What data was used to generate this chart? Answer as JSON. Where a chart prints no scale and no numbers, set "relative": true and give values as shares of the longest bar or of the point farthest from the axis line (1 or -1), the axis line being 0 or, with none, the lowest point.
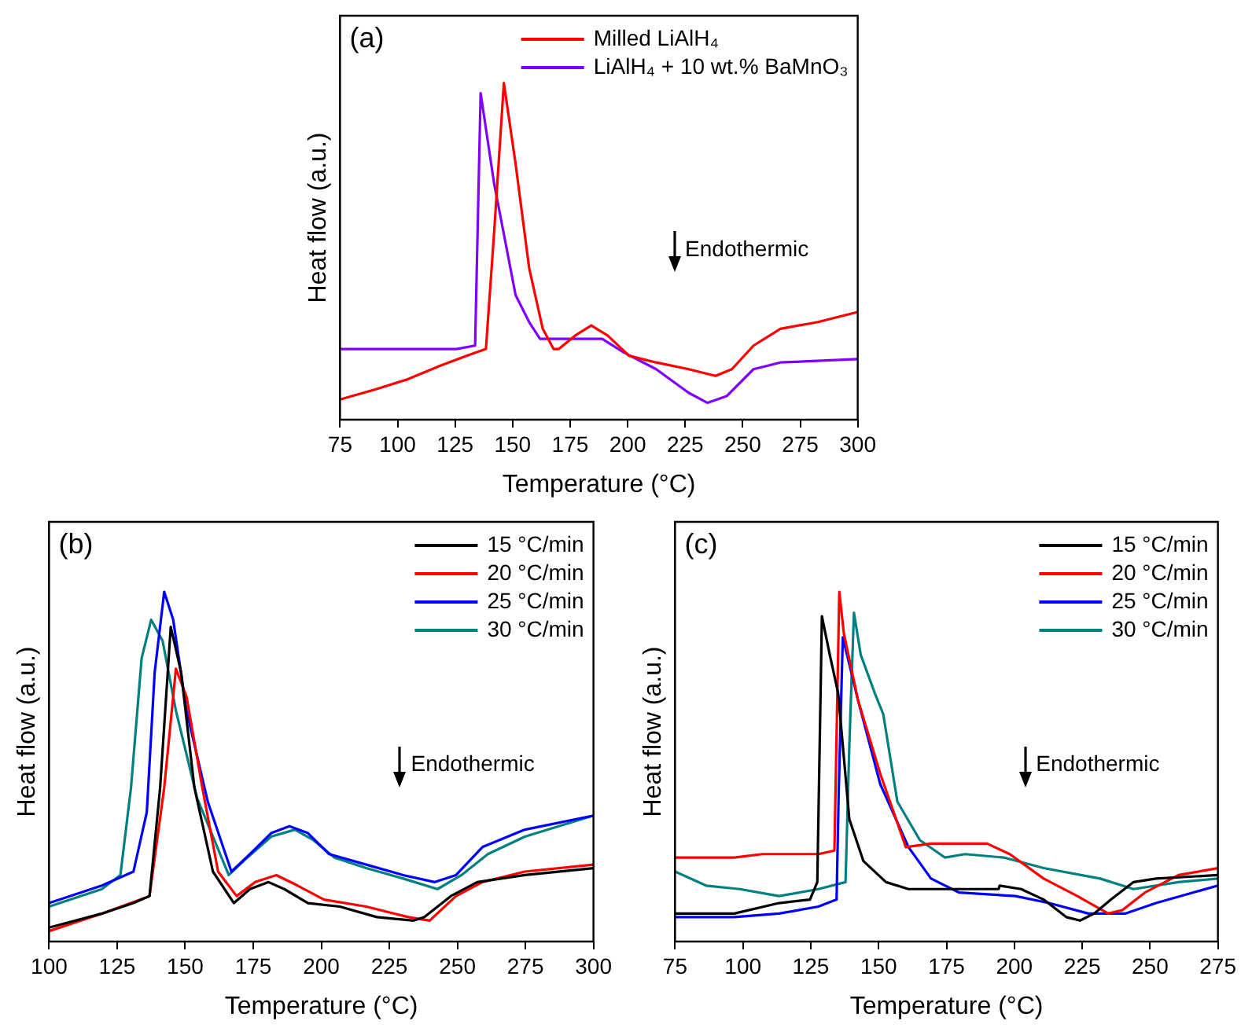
{
  "chart_data": [
    {
      "type": "line",
      "xlabel": "Temperature (°C)",
      "ylabel": "Heat flow (a.u.)",
      "relative": true,
      "xlim": [
        75,
        300
      ],
      "xticks": [
        75,
        100,
        125,
        150,
        175,
        200,
        225,
        250,
        275,
        300
      ],
      "grid": false,
      "legend": "top right",
      "marker": "none",
      "line_style": "solid",
      "annotations": [
        "(a)",
        "Endothermic"
      ],
      "series": [
        {
          "name": "Milled LiAlH₄",
          "color": "#ff0000",
          "x": [
            75,
            90.3,
            104.4,
            118.4,
            130.2,
            138.4,
            142,
            146.2,
            151.3,
            157.2,
            163.1,
            167.8,
            170.1,
            177.2,
            184.2,
            191.3,
            200.6,
            212.4,
            226.5,
            238.2,
            245.3,
            254.7,
            266.4,
            282.7,
            300
          ],
          "values": [
            0.06,
            0.09,
            0.12,
            0.16,
            0.19,
            0.21,
            0.56,
            1,
            0.76,
            0.45,
            0.27,
            0.21,
            0.21,
            0.25,
            0.28,
            0.25,
            0.19,
            0.17,
            0.15,
            0.13,
            0.15,
            0.22,
            0.27,
            0.29,
            0.32
          ]
        },
        {
          "name": "LiAlH₄ + 10 wt.% BaMnO₃",
          "color": "#8000ff",
          "x": [
            75,
            95,
            109,
            125.5,
            133.7,
            136.1,
            142,
            151.3,
            157.2,
            161.9,
            172.5,
            188.9,
            198.3,
            212.4,
            226.5,
            234.7,
            243,
            254.7,
            266.4,
            300
          ],
          "values": [
            0.21,
            0.21,
            0.21,
            0.21,
            0.22,
            0.97,
            0.7,
            0.37,
            0.29,
            0.24,
            0.24,
            0.24,
            0.2,
            0.15,
            0.08,
            0.05,
            0.07,
            0.15,
            0.17,
            0.18
          ]
        }
      ]
    },
    {
      "type": "line",
      "xlabel": "Temperature (°C)",
      "ylabel": "Heat flow (a.u.)",
      "relative": true,
      "xlim": [
        100,
        300
      ],
      "xticks": [
        100,
        125,
        150,
        175,
        200,
        225,
        250,
        275,
        300
      ],
      "grid": false,
      "legend": "top right",
      "marker": "none",
      "line_style": "solid",
      "annotations": [
        "(b)",
        "Endothermic"
      ],
      "series": [
        {
          "name": "15 °C/min",
          "color": "#000000",
          "x": [
            100,
            119.4,
            131,
            136.9,
            140.8,
            144.7,
            148.5,
            153.4,
            160.2,
            167.9,
            173.8,
            180.6,
            186.4,
            195.1,
            206.8,
            220.4,
            234,
            237.9,
            247.6,
            257.3,
            274.8,
            300
          ],
          "values": [
            0.04,
            0.08,
            0.11,
            0.13,
            0.44,
            0.9,
            0.77,
            0.44,
            0.2,
            0.11,
            0.15,
            0.17,
            0.15,
            0.11,
            0.1,
            0.07,
            0.06,
            0.07,
            0.13,
            0.17,
            0.19,
            0.21
          ]
        },
        {
          "name": "20 °C/min",
          "color": "#ff0000",
          "x": [
            100,
            119.4,
            136.9,
            142.3,
            146.6,
            150.5,
            156.3,
            162.1,
            168.9,
            175.7,
            183.5,
            191.3,
            201,
            216.5,
            232,
            239.8,
            249.5,
            259.2,
            274.8,
            300
          ],
          "values": [
            0.03,
            0.08,
            0.13,
            0.44,
            0.78,
            0.7,
            0.44,
            0.2,
            0.13,
            0.17,
            0.19,
            0.16,
            0.12,
            0.1,
            0.07,
            0.06,
            0.13,
            0.17,
            0.2,
            0.22
          ]
        },
        {
          "name": "25 °C/min",
          "color": "#0000ff",
          "x": [
            100,
            119.4,
            131,
            135.9,
            138.8,
            142.3,
            145.6,
            150.5,
            158.3,
            167,
            173.8,
            181.6,
            188.3,
            195.1,
            202.9,
            216.5,
            230.1,
            241.7,
            249.5,
            259.2,
            274.8,
            300
          ],
          "values": [
            0.11,
            0.16,
            0.2,
            0.37,
            0.77,
            1,
            0.92,
            0.66,
            0.4,
            0.2,
            0.25,
            0.31,
            0.33,
            0.31,
            0.25,
            0.22,
            0.19,
            0.17,
            0.19,
            0.27,
            0.32,
            0.36
          ]
        },
        {
          "name": "30 °C/min",
          "color": "#008080",
          "x": [
            100,
            119.4,
            126.2,
            130.1,
            134,
            137.5,
            141.7,
            146.6,
            154.4,
            166,
            172.8,
            181.6,
            190.3,
            197.1,
            204.9,
            216.5,
            230.1,
            242.7,
            251.5,
            261.2,
            274.8,
            300
          ],
          "values": [
            0.1,
            0.15,
            0.19,
            0.44,
            0.81,
            0.92,
            0.86,
            0.66,
            0.41,
            0.19,
            0.24,
            0.3,
            0.32,
            0.29,
            0.24,
            0.21,
            0.18,
            0.15,
            0.19,
            0.25,
            0.3,
            0.36
          ]
        }
      ]
    },
    {
      "type": "line",
      "xlabel": "Temperature (°C)",
      "ylabel": "Heat flow (a.u.)",
      "relative": true,
      "xlim": [
        75,
        275
      ],
      "xticks": [
        75,
        100,
        125,
        150,
        175,
        200,
        225,
        250,
        275
      ],
      "grid": false,
      "legend": "top right",
      "marker": "none",
      "line_style": "solid",
      "annotations": [
        "(c)",
        "Endothermic"
      ],
      "series": [
        {
          "name": "15 °C/min",
          "color": "#000000",
          "x": [
            75,
            96.8,
            113.3,
            124.7,
            127.4,
            129.1,
            132,
            135.1,
            139.2,
            144.4,
            152.7,
            161,
            179.7,
            194.2,
            194.6,
            202.5,
            210.8,
            219.1,
            224.2,
            229.4,
            235.6,
            243.9,
            252.2,
            275
          ],
          "values": [
            0.08,
            0.08,
            0.11,
            0.12,
            0.17,
            0.93,
            0.82,
            0.71,
            0.35,
            0.23,
            0.17,
            0.15,
            0.15,
            0.15,
            0.16,
            0.15,
            0.12,
            0.07,
            0.06,
            0.08,
            0.12,
            0.17,
            0.18,
            0.19
          ]
        },
        {
          "name": "20 °C/min",
          "color": "#ff0000",
          "x": [
            75,
            96.8,
            107.1,
            127.8,
            133.7,
            135.5,
            137.2,
            142.4,
            150.6,
            160,
            169.3,
            190,
            198.3,
            210.8,
            223.2,
            234.6,
            239.8,
            248.1,
            260.5,
            275
          ],
          "values": [
            0.24,
            0.24,
            0.25,
            0.25,
            0.26,
            1,
            0.88,
            0.69,
            0.48,
            0.27,
            0.28,
            0.28,
            0.25,
            0.18,
            0.13,
            0.08,
            0.09,
            0.14,
            0.19,
            0.21
          ]
        },
        {
          "name": "25 °C/min",
          "color": "#0000ff",
          "x": [
            75,
            96.8,
            113.3,
            127.8,
            134.5,
            135.3,
            136.8,
            142.4,
            150.6,
            161,
            169.3,
            179.7,
            200.4,
            212.8,
            227.3,
            240.8,
            252.2,
            275
          ],
          "values": [
            0.07,
            0.07,
            0.08,
            0.1,
            0.12,
            0.43,
            0.87,
            0.69,
            0.45,
            0.27,
            0.18,
            0.14,
            0.13,
            0.11,
            0.08,
            0.08,
            0.11,
            0.16
          ]
        },
        {
          "name": "30 °C/min",
          "color": "#008080",
          "x": [
            75,
            86.4,
            98.8,
            113.3,
            127.8,
            137.8,
            139.2,
            140.9,
            143.4,
            148.6,
            151.7,
            156.9,
            165.2,
            174.5,
            181.8,
            196.3,
            210.8,
            231.6,
            243.9,
            260.5,
            275
          ],
          "values": [
            0.2,
            0.16,
            0.15,
            0.13,
            0.15,
            0.17,
            0.56,
            0.94,
            0.82,
            0.71,
            0.65,
            0.4,
            0.29,
            0.24,
            0.25,
            0.24,
            0.21,
            0.18,
            0.15,
            0.17,
            0.18
          ]
        }
      ]
    }
  ]
}
